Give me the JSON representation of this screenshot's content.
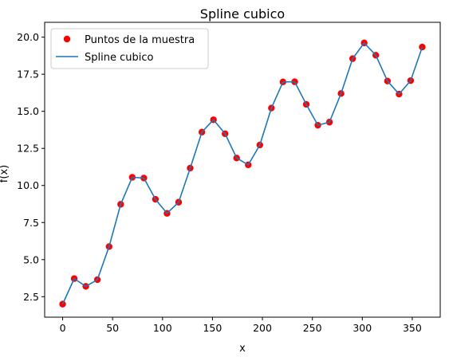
{
  "chart_data": {
    "type": "line",
    "title": "Spline cubico",
    "xlabel": "x",
    "ylabel": "f(x)",
    "xlim": [
      -18,
      378
    ],
    "ylim": [
      1.12,
      21.0
    ],
    "xticks": [
      0,
      50,
      100,
      150,
      200,
      250,
      300,
      350
    ],
    "xtick_labels": [
      "0",
      "50",
      "100",
      "150",
      "200",
      "250",
      "300",
      "350"
    ],
    "yticks": [
      2.5,
      5.0,
      7.5,
      10.0,
      12.5,
      15.0,
      17.5,
      20.0
    ],
    "ytick_labels": [
      "2.5",
      "5.0",
      "7.5",
      "10.0",
      "12.5",
      "15.0",
      "17.5",
      "20.0"
    ],
    "legend_position": "top-left",
    "series": [
      {
        "name": "Puntos de la muestra",
        "kind": "scatter",
        "color": "#ff0000",
        "x": [
          0,
          11.6,
          23.2,
          34.8,
          46.5,
          58.1,
          69.7,
          81.3,
          92.9,
          104.5,
          116.1,
          127.7,
          139.4,
          151.0,
          162.6,
          174.2,
          185.8,
          197.4,
          209.0,
          220.6,
          232.3,
          243.9,
          255.5,
          267.1,
          278.7,
          290.3,
          301.9,
          313.5,
          325.2,
          336.8,
          348.4,
          360.0
        ],
        "y": [
          2.0,
          3.72,
          3.2,
          3.65,
          5.88,
          8.73,
          10.55,
          10.5,
          9.07,
          8.12,
          8.87,
          11.17,
          13.6,
          14.43,
          13.49,
          11.85,
          11.39,
          12.73,
          15.22,
          16.98,
          16.99,
          15.47,
          14.06,
          14.27,
          16.2,
          18.55,
          19.61,
          18.78,
          17.04,
          16.16,
          17.07,
          19.33
        ]
      },
      {
        "name": "Spline cubico",
        "kind": "line",
        "color": "#1f77b4",
        "x": [
          0,
          11.6,
          23.2,
          34.8,
          46.5,
          58.1,
          69.7,
          81.3,
          92.9,
          104.5,
          116.1,
          127.7,
          139.4,
          151.0,
          162.6,
          174.2,
          185.8,
          197.4,
          209.0,
          220.6,
          232.3,
          243.9,
          255.5,
          267.1,
          278.7,
          290.3,
          301.9,
          313.5,
          325.2,
          336.8,
          348.4,
          360.0
        ],
        "y": [
          2.0,
          3.72,
          3.2,
          3.65,
          5.88,
          8.73,
          10.55,
          10.5,
          9.07,
          8.12,
          8.87,
          11.17,
          13.6,
          14.43,
          13.49,
          11.85,
          11.39,
          12.73,
          15.22,
          16.98,
          16.99,
          15.47,
          14.06,
          14.27,
          16.2,
          18.55,
          19.61,
          18.78,
          17.04,
          16.16,
          17.07,
          19.33
        ]
      }
    ]
  }
}
